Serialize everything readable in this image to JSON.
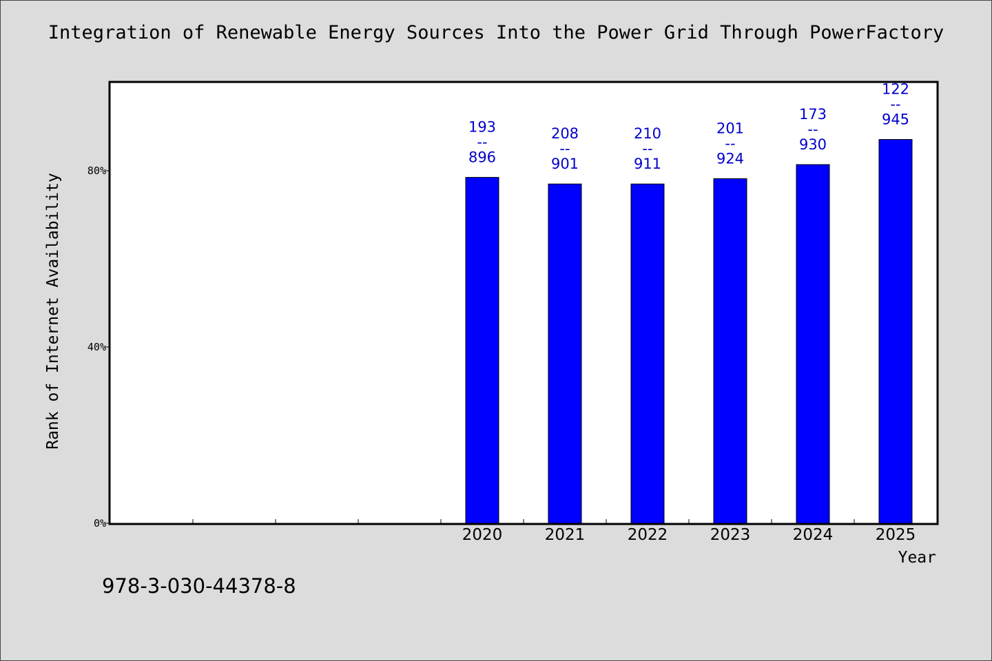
{
  "title": "Integration of Renewable Energy Sources Into the Power Grid Through PowerFactory",
  "footer_text": "978-3-030-44378-8",
  "colors": {
    "bar": "#0000ff",
    "label": "#0000cc",
    "background": "#dcdcdc",
    "plot": "#ffffff"
  },
  "chart_data": {
    "type": "bar",
    "title": "Integration of Renewable Energy Sources Into the Power Grid Through PowerFactory",
    "xlabel": "Year",
    "ylabel": "Rank of Internet Availability",
    "categories": [
      "",
      "",
      "",
      "",
      "2020",
      "2021",
      "2022",
      "2023",
      "2024",
      "2025"
    ],
    "values": [
      null,
      null,
      null,
      null,
      78.5,
      77.0,
      77.0,
      78.2,
      81.4,
      87.1
    ],
    "ranks": [
      "",
      "",
      "",
      "",
      "193",
      "208",
      "210",
      "201",
      "173",
      "122"
    ],
    "totals": [
      "",
      "",
      "",
      "",
      "896",
      "901",
      "911",
      "924",
      "930",
      "945"
    ],
    "separator": "--",
    "ylim": [
      0,
      100
    ],
    "yticks": [
      0,
      40,
      80
    ],
    "ytick_labels": [
      "0%",
      "40%",
      "80%"
    ],
    "grid": false,
    "legend": "none"
  }
}
